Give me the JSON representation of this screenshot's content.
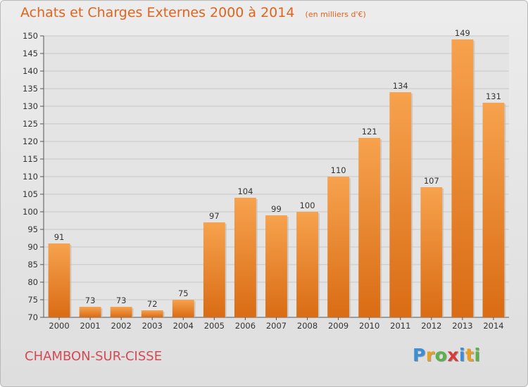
{
  "title": "Achats et Charges Externes 2000 à 2014",
  "unit": "(en milliers d'€)",
  "place": "CHAMBON-SUR-CISSE",
  "logo": {
    "letters": [
      "P",
      "r",
      "o",
      "x",
      "i",
      "t",
      "i"
    ],
    "colors": [
      "#3a8fd8",
      "#e8a020",
      "#5bb14a",
      "#d63a3a",
      "#3a8fd8",
      "#e8a020",
      "#5bb14a"
    ]
  },
  "colors": {
    "bar": "#f08a2c",
    "title": "#e0641e",
    "place": "#d34a55",
    "grid": "#c9c9c9"
  },
  "chart_data": {
    "type": "bar",
    "title": "Achats et Charges Externes 2000 à 2014",
    "subtitle": "(en milliers d'€)",
    "categories": [
      "2000",
      "2001",
      "2002",
      "2003",
      "2004",
      "2005",
      "2006",
      "2007",
      "2008",
      "2009",
      "2010",
      "2011",
      "2012",
      "2013",
      "2014"
    ],
    "values": [
      91,
      73,
      73,
      72,
      75,
      97,
      104,
      99,
      100,
      110,
      121,
      134,
      107,
      149,
      131
    ],
    "ylim": [
      70,
      150
    ],
    "yticks": [
      70,
      75,
      80,
      85,
      90,
      95,
      100,
      105,
      110,
      115,
      120,
      125,
      130,
      135,
      140,
      145,
      150
    ],
    "grid": true,
    "legend": "none"
  }
}
